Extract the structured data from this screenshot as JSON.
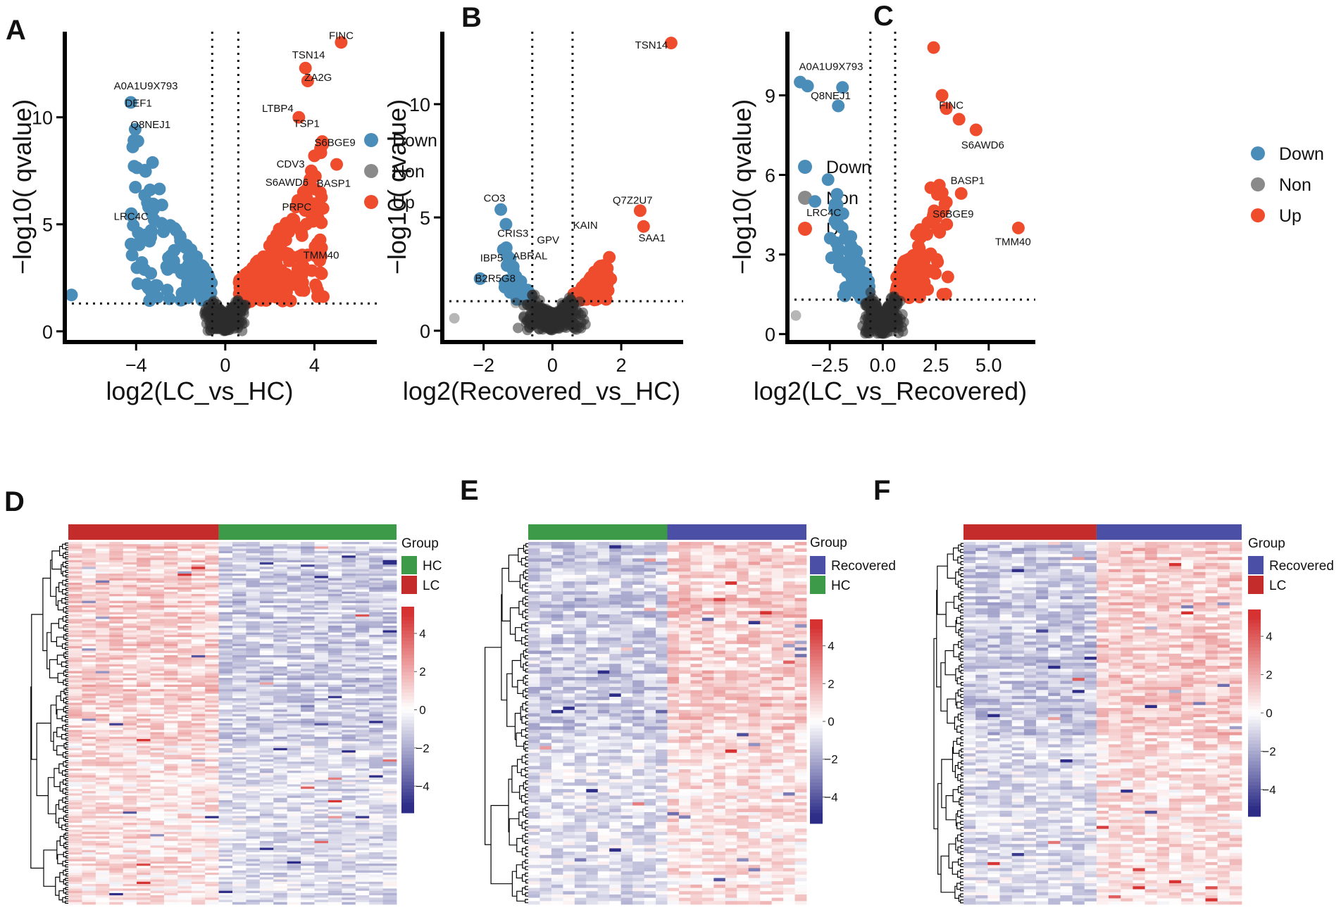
{
  "panel_letters": [
    "A",
    "B",
    "C",
    "D",
    "E",
    "F"
  ],
  "colors": {
    "down": "#4b8db9",
    "non": "#8a8a8a",
    "up": "#ee4c2c",
    "hc": "#3c9a48",
    "lc": "#c42b2b",
    "recovered": "#4b4fa6",
    "heat_low": "#2d2d88",
    "heat_mid": "#ffffff",
    "heat_high": "#d63232"
  },
  "legend": {
    "down": "Down",
    "non": "Non",
    "up": "Up"
  },
  "chart_data": [
    {
      "type": "scatter",
      "panel": "A",
      "xlabel": "log2(LC_vs_HC)",
      "ylabel": "−log10( qvalue)",
      "xlim": [
        -7.2,
        6.8
      ],
      "ylim": [
        -0.5,
        14
      ],
      "xticks": [
        -4,
        0,
        4
      ],
      "xtick_labels": [
        "−4",
        "0",
        "4"
      ],
      "yticks": [
        0,
        5,
        10
      ],
      "ytick_labels": [
        "0",
        "5",
        "10"
      ],
      "vlines": [
        -0.585,
        0.585
      ],
      "hline": 1.3,
      "counts": {
        "down": 160,
        "up": 220,
        "non": 420
      },
      "down_xmin": -4.2,
      "up_xmax": 4.4,
      "ymax_down": 11.2,
      "ymax_up": 9,
      "extra_points": [
        {
          "x": -6.9,
          "y": 1.7,
          "group": "down"
        },
        {
          "x": 5.2,
          "y": 13.5,
          "group": "up"
        },
        {
          "x": 4.3,
          "y": 3.5,
          "group": "up"
        },
        {
          "x": 3.6,
          "y": 12.3,
          "group": "up"
        },
        {
          "x": 3.7,
          "y": 11.7,
          "group": "up"
        },
        {
          "x": 5.0,
          "y": 7.8,
          "group": "up"
        },
        {
          "x": 4.0,
          "y": 8.2,
          "group": "up"
        },
        {
          "x": 3.3,
          "y": 10.0,
          "group": "up"
        }
      ],
      "labels": [
        {
          "text": "FINC",
          "x": 4.65,
          "y": 13.65
        },
        {
          "text": "TSN14",
          "x": 3.0,
          "y": 12.75
        },
        {
          "text": "ZA2G",
          "x": 3.55,
          "y": 11.7
        },
        {
          "text": "LTBP4",
          "x": 1.65,
          "y": 10.25
        },
        {
          "text": "TSP1",
          "x": 3.05,
          "y": 9.55
        },
        {
          "text": "S6BGE9",
          "x": 4.0,
          "y": 8.65
        },
        {
          "text": "CDV3",
          "x": 2.3,
          "y": 7.65
        },
        {
          "text": "S6AWD6",
          "x": 1.8,
          "y": 6.8
        },
        {
          "text": "BASP1",
          "x": 4.1,
          "y": 6.75
        },
        {
          "text": "PRPC",
          "x": 2.55,
          "y": 5.65
        },
        {
          "text": "TMM40",
          "x": 3.5,
          "y": 3.4
        },
        {
          "text": "A0A1U9X793",
          "x": -5.0,
          "y": 11.3
        },
        {
          "text": "DEF1",
          "x": -4.5,
          "y": 10.5
        },
        {
          "text": "Q8NEJ1",
          "x": -4.25,
          "y": 9.5
        },
        {
          "text": "LRC4C",
          "x": -5.0,
          "y": 5.2
        }
      ]
    },
    {
      "type": "scatter",
      "panel": "B",
      "xlabel": "log2(Recovered_vs_HC)",
      "ylabel": "−log10( qvalue)",
      "xlim": [
        -3.2,
        3.8
      ],
      "ylim": [
        -0.5,
        13.2
      ],
      "xticks": [
        -2,
        0,
        2
      ],
      "xtick_labels": [
        "−2",
        "0",
        "2"
      ],
      "yticks": [
        0,
        5,
        10
      ],
      "ytick_labels": [
        "0",
        "5",
        "10"
      ],
      "vlines": [
        -0.585,
        0.585
      ],
      "hline": 1.3,
      "counts": {
        "down": 70,
        "up": 90,
        "non": 380
      },
      "down_xmin": -1.3,
      "up_xmax": 1.6,
      "ymax_down": 3.8,
      "ymax_up": 3.6,
      "extra_points": [
        {
          "x": -2.85,
          "y": 0.55,
          "group": "non"
        },
        {
          "x": 3.45,
          "y": 12.7,
          "group": "up"
        },
        {
          "x": 2.55,
          "y": 5.3,
          "group": "up"
        },
        {
          "x": 2.65,
          "y": 4.6,
          "group": "up"
        },
        {
          "x": -1.5,
          "y": 5.35,
          "group": "down"
        },
        {
          "x": -1.35,
          "y": 4.7,
          "group": "down"
        },
        {
          "x": -2.1,
          "y": 2.3,
          "group": "down"
        }
      ],
      "labels": [
        {
          "text": "TSN14",
          "x": 2.4,
          "y": 12.45
        },
        {
          "text": "Q7Z2U7",
          "x": 1.75,
          "y": 5.6
        },
        {
          "text": "SAA1",
          "x": 2.5,
          "y": 3.95
        },
        {
          "text": "KAIN",
          "x": 0.6,
          "y": 4.5
        },
        {
          "text": "CO3",
          "x": -2.0,
          "y": 5.7
        },
        {
          "text": "CRIS3",
          "x": -1.6,
          "y": 4.15
        },
        {
          "text": "GPV",
          "x": -0.45,
          "y": 3.85
        },
        {
          "text": "ABRAL",
          "x": -1.15,
          "y": 3.15
        },
        {
          "text": "IBP5",
          "x": -2.1,
          "y": 3.05
        },
        {
          "text": "B2R5G8",
          "x": -2.25,
          "y": 2.15
        }
      ]
    },
    {
      "type": "scatter",
      "panel": "C",
      "xlabel": "log2(LC_vs_Recovered)",
      "ylabel": "−log10( qvalue)",
      "xlim": [
        -4.5,
        7.2
      ],
      "ylim": [
        -0.3,
        11.4
      ],
      "xticks": [
        -2.5,
        0,
        2.5,
        5.0
      ],
      "xtick_labels": [
        "−2.5",
        "0.0",
        "2.5",
        "5.0"
      ],
      "yticks": [
        0,
        3,
        6,
        9
      ],
      "ytick_labels": [
        "0",
        "3",
        "6",
        "9"
      ],
      "vlines": [
        -0.585,
        0.585
      ],
      "hline": 1.3,
      "counts": {
        "down": 75,
        "up": 110,
        "non": 380
      },
      "down_xmin": -2.6,
      "up_xmax": 3.0,
      "ymax_down": 7.2,
      "ymax_up": 7.8,
      "extra_points": [
        {
          "x": -4.1,
          "y": 0.7,
          "group": "non"
        },
        {
          "x": 2.4,
          "y": 10.8,
          "group": "up"
        },
        {
          "x": 2.8,
          "y": 9.0,
          "group": "up"
        },
        {
          "x": 3.0,
          "y": 8.5,
          "group": "up"
        },
        {
          "x": 3.6,
          "y": 8.1,
          "group": "up"
        },
        {
          "x": 4.4,
          "y": 7.7,
          "group": "up"
        },
        {
          "x": 3.7,
          "y": 5.3,
          "group": "up"
        },
        {
          "x": 2.8,
          "y": 4.6,
          "group": "up"
        },
        {
          "x": 6.4,
          "y": 4.0,
          "group": "up"
        },
        {
          "x": -3.9,
          "y": 9.5,
          "group": "down"
        },
        {
          "x": -3.55,
          "y": 9.35,
          "group": "down"
        },
        {
          "x": -1.9,
          "y": 9.3,
          "group": "down"
        },
        {
          "x": -2.1,
          "y": 8.6,
          "group": "down"
        },
        {
          "x": -3.2,
          "y": 5.0,
          "group": "down"
        }
      ],
      "labels": [
        {
          "text": "A0A1U9X793",
          "x": -3.95,
          "y": 9.95
        },
        {
          "text": "Q8NEJ1",
          "x": -3.4,
          "y": 8.85
        },
        {
          "text": "FINC",
          "x": 2.65,
          "y": 8.5
        },
        {
          "text": "S6AWD6",
          "x": 3.7,
          "y": 7.0
        },
        {
          "text": "BASP1",
          "x": 3.2,
          "y": 5.65
        },
        {
          "text": "S6BGE9",
          "x": 2.35,
          "y": 4.4
        },
        {
          "text": "TMM40",
          "x": 5.3,
          "y": 3.35
        },
        {
          "text": "LRC4C",
          "x": -3.6,
          "y": 4.45
        }
      ]
    },
    {
      "type": "heatmap",
      "panel": "D",
      "groups": [
        {
          "name": "LC",
          "color": "#c42b2b",
          "n": 11
        },
        {
          "name": "HC",
          "color": "#3c9a48",
          "n": 13
        }
      ],
      "legend_title": "Group",
      "legend_items": [
        {
          "name": "HC",
          "color": "#3c9a48"
        },
        {
          "name": "LC",
          "color": "#c42b2b"
        }
      ],
      "n_rows": 160,
      "shift_sign": -1,
      "scale_ticks": [
        4,
        2,
        0,
        -2,
        -4
      ],
      "scale_tick_labels": [
        "4",
        "2",
        "0",
        "−2",
        "−4"
      ],
      "scale_range": [
        -5.4,
        5.4
      ]
    },
    {
      "type": "heatmap",
      "panel": "E",
      "groups": [
        {
          "name": "HC",
          "color": "#3c9a48",
          "n": 12
        },
        {
          "name": "Recovered",
          "color": "#4b4fa6",
          "n": 12
        }
      ],
      "legend_title": "Group",
      "legend_items": [
        {
          "name": "Recovered",
          "color": "#4b4fa6"
        },
        {
          "name": "HC",
          "color": "#3c9a48"
        }
      ],
      "n_rows": 110,
      "shift_sign": 1,
      "scale_ticks": [
        4,
        2,
        0,
        -2,
        -4
      ],
      "scale_tick_labels": [
        "4",
        "2",
        "0",
        "−2",
        "−4"
      ],
      "scale_range": [
        -5.4,
        5.4
      ]
    },
    {
      "type": "heatmap",
      "panel": "F",
      "groups": [
        {
          "name": "LC",
          "color": "#c42b2b",
          "n": 11
        },
        {
          "name": "Recovered",
          "color": "#4b4fa6",
          "n": 12
        }
      ],
      "legend_title": "Group",
      "legend_items": [
        {
          "name": "Recovered",
          "color": "#4b4fa6"
        },
        {
          "name": "LC",
          "color": "#c42b2b"
        }
      ],
      "n_rows": 120,
      "shift_sign": 1,
      "scale_ticks": [
        4,
        2,
        0,
        -2,
        -4
      ],
      "scale_tick_labels": [
        "4",
        "2",
        "0",
        "−2",
        "−4"
      ],
      "scale_range": [
        -5.4,
        5.4
      ]
    }
  ]
}
